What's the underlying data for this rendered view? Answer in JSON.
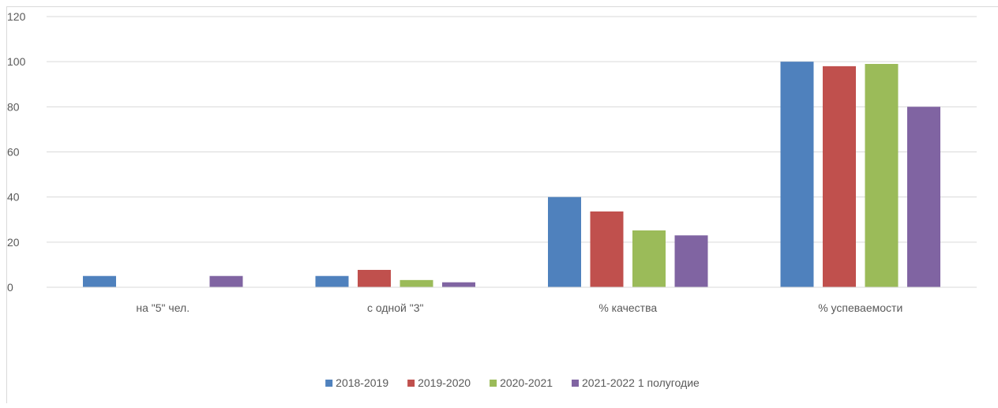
{
  "chart_data": {
    "type": "bar",
    "title": "",
    "xlabel": "",
    "ylabel": "",
    "ylim": [
      0,
      120
    ],
    "yticks": [
      0,
      20,
      40,
      60,
      80,
      100,
      120
    ],
    "grid": true,
    "legend_position": "bottom",
    "categories": [
      "на \"5\" чел.",
      "с одной \"3\"",
      "% качества",
      "% успеваемости"
    ],
    "series": [
      {
        "name": "2018-2019",
        "color": "#4f81bd",
        "values": [
          5,
          5,
          40,
          100
        ]
      },
      {
        "name": "2019-2020",
        "color": "#c0504d",
        "values": [
          0,
          7.7,
          33.6,
          98
        ]
      },
      {
        "name": "2020-2021",
        "color": "#9bbb59",
        "values": [
          0,
          3.2,
          25.2,
          99
        ]
      },
      {
        "name": "2021-2022 1 полугодие",
        "color": "#8064a2",
        "values": [
          5,
          2.2,
          23,
          80
        ]
      }
    ]
  }
}
